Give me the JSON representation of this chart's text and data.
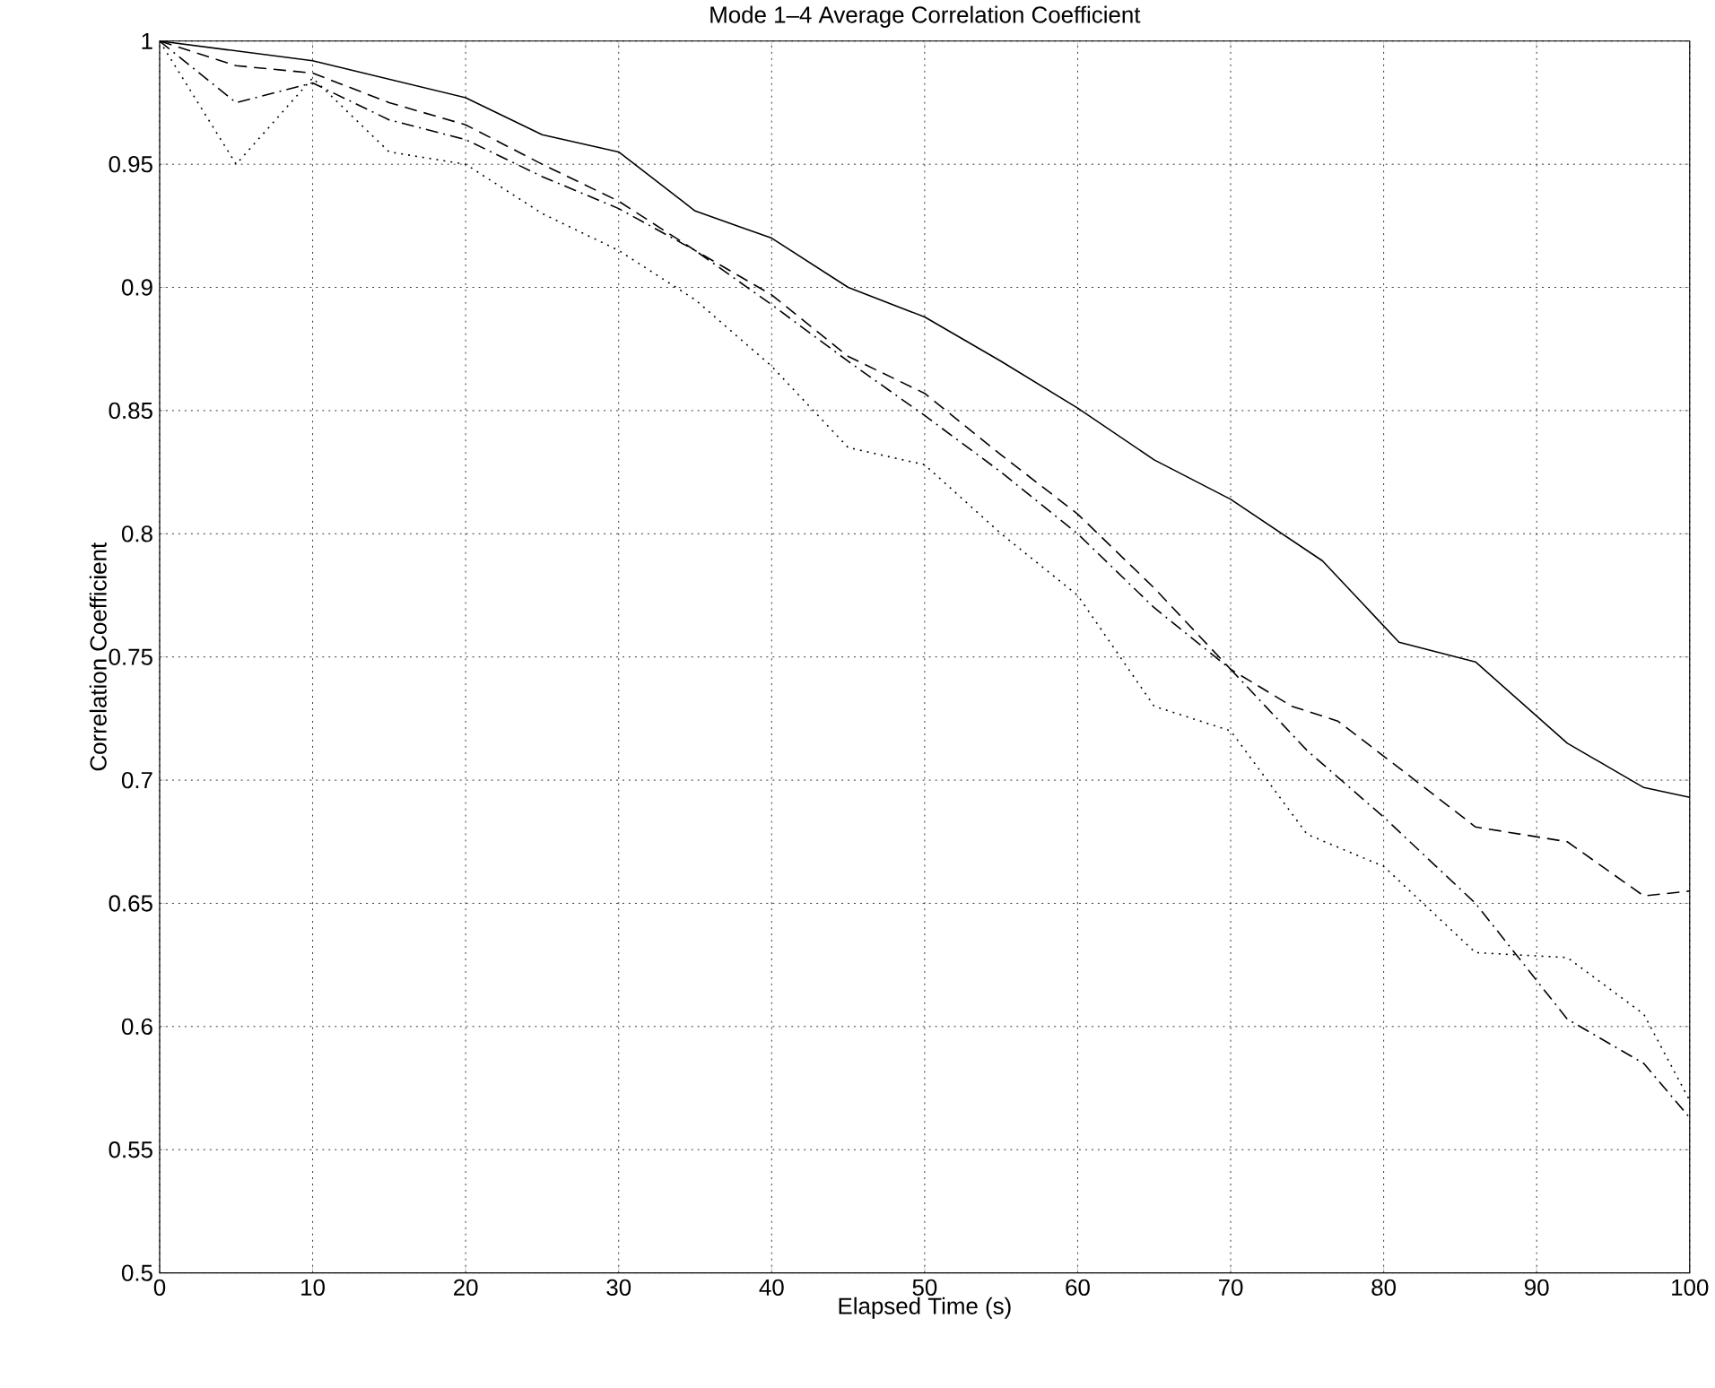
{
  "chart_data": {
    "type": "line",
    "title": "Mode 1–4 Average Correlation Coefficient",
    "xlabel": "Elapsed Time (s)",
    "ylabel": "Correlation Coefficient",
    "xlim": [
      0,
      100
    ],
    "xticks": [
      0,
      10,
      20,
      30,
      40,
      50,
      60,
      70,
      80,
      90,
      100
    ],
    "ylim": [
      0.5,
      1
    ],
    "yticks": [
      0.5,
      0.55,
      0.6,
      0.65,
      0.7,
      0.75,
      0.8,
      0.85,
      0.9,
      0.95,
      1
    ],
    "grid": true,
    "series": [
      {
        "color": "#000000",
        "line_style": "solid",
        "x": [
          0,
          10,
          20,
          25,
          30,
          35,
          40,
          45,
          50,
          55,
          60,
          65,
          70,
          76,
          81,
          86,
          92,
          97,
          100
        ],
        "values": [
          1,
          0.992,
          0.977,
          0.962,
          0.955,
          0.931,
          0.92,
          0.9,
          0.888,
          0.87,
          0.851,
          0.83,
          0.814,
          0.789,
          0.756,
          0.748,
          0.715,
          0.697,
          0.693
        ]
      },
      {
        "color": "#000000",
        "line_style": "dashed",
        "x": [
          0,
          5,
          10,
          15,
          20,
          25,
          30,
          35,
          40,
          45,
          50,
          55,
          60,
          65,
          70,
          74,
          77,
          81,
          86,
          92,
          97,
          100
        ],
        "values": [
          1,
          0.99,
          0.987,
          0.975,
          0.966,
          0.95,
          0.935,
          0.915,
          0.897,
          0.872,
          0.857,
          0.832,
          0.808,
          0.778,
          0.745,
          0.73,
          0.724,
          0.705,
          0.681,
          0.675,
          0.653,
          0.655
        ]
      },
      {
        "color": "#000000",
        "line_style": "dashdot",
        "x": [
          0,
          5,
          10,
          15,
          20,
          25,
          30,
          35,
          40,
          45,
          50,
          55,
          60,
          65,
          70,
          75,
          80,
          86,
          92,
          97,
          100
        ],
        "values": [
          1,
          0.975,
          0.983,
          0.968,
          0.96,
          0.945,
          0.932,
          0.915,
          0.893,
          0.87,
          0.848,
          0.825,
          0.8,
          0.77,
          0.745,
          0.712,
          0.685,
          0.65,
          0.603,
          0.585,
          0.563
        ]
      },
      {
        "color": "#000000",
        "line_style": "dotted",
        "x": [
          0,
          5,
          10,
          15,
          20,
          25,
          30,
          35,
          40,
          45,
          50,
          55,
          60,
          65,
          70,
          75,
          80,
          86,
          92,
          97,
          100
        ],
        "values": [
          1,
          0.95,
          0.985,
          0.955,
          0.95,
          0.93,
          0.915,
          0.895,
          0.868,
          0.835,
          0.828,
          0.8,
          0.775,
          0.73,
          0.72,
          0.678,
          0.665,
          0.63,
          0.628,
          0.605,
          0.57
        ]
      }
    ]
  }
}
